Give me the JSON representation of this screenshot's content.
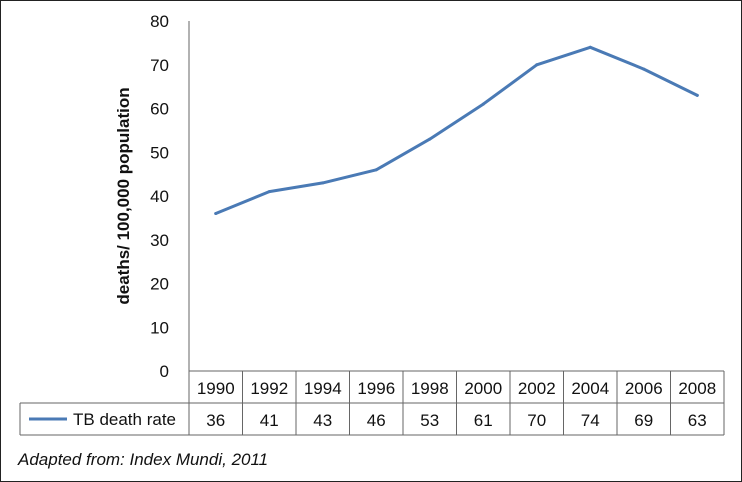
{
  "chart_data": {
    "type": "line",
    "ylabel": "deaths/ 100,000 population",
    "ylim": [
      0,
      80
    ],
    "yticks": [
      0,
      10,
      20,
      30,
      40,
      50,
      60,
      70,
      80
    ],
    "categories": [
      "1990",
      "1992",
      "1994",
      "1996",
      "1998",
      "2000",
      "2002",
      "2004",
      "2006",
      "2008"
    ],
    "series": [
      {
        "name": "TB death rate",
        "values": [
          36,
          41,
          43,
          46,
          53,
          61,
          70,
          74,
          69,
          63
        ]
      }
    ],
    "line_color": "#4a7ab5",
    "grid": false,
    "data_table": true
  },
  "source": "Adapted from: Index Mundi, 2011"
}
